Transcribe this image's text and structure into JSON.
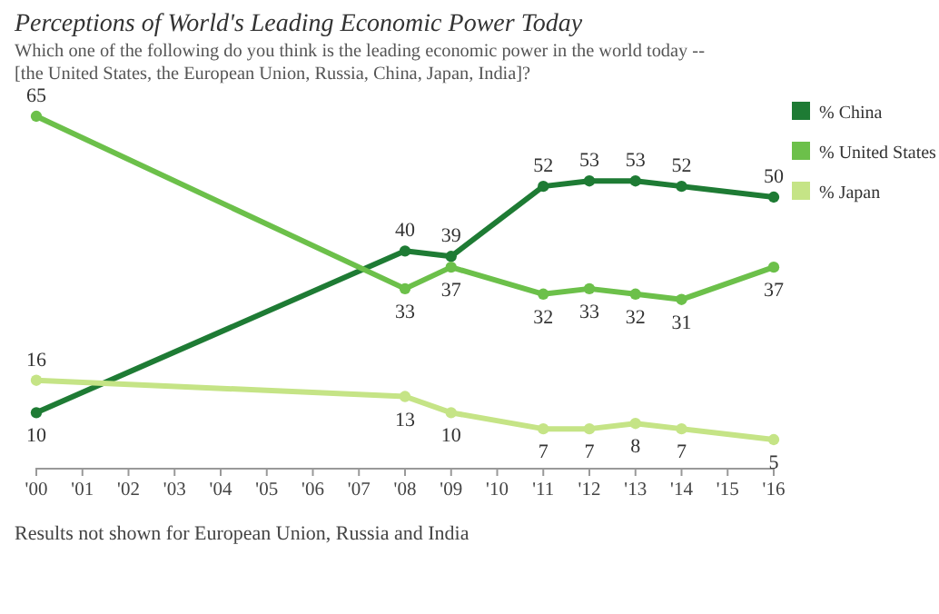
{
  "chart_data": {
    "type": "line",
    "title": "Perceptions of World's Leading Economic Power Today",
    "subtitle": "Which one of the following do you think is the leading economic power in the world today -- [the United States, the European Union, Russia, China, Japan, India]?",
    "annotations": [
      "Results not shown for European Union, Russia and India"
    ],
    "xlim": [
      2000,
      2016
    ],
    "xticks": [
      {
        "value": 2000,
        "label": "'00"
      },
      {
        "value": 2001,
        "label": "'01"
      },
      {
        "value": 2002,
        "label": "'02"
      },
      {
        "value": 2003,
        "label": "'03"
      },
      {
        "value": 2004,
        "label": "'04"
      },
      {
        "value": 2005,
        "label": "'05"
      },
      {
        "value": 2006,
        "label": "'06"
      },
      {
        "value": 2007,
        "label": "'07"
      },
      {
        "value": 2008,
        "label": "'08"
      },
      {
        "value": 2009,
        "label": "'09"
      },
      {
        "value": 2010,
        "label": "'10"
      },
      {
        "value": 2011,
        "label": "'11"
      },
      {
        "value": 2012,
        "label": "'12"
      },
      {
        "value": 2013,
        "label": "'13"
      },
      {
        "value": 2014,
        "label": "'14"
      },
      {
        "value": 2015,
        "label": "'15"
      },
      {
        "value": 2016,
        "label": "'16"
      }
    ],
    "tick_labels": "x",
    "data_labels": true,
    "legend": "right",
    "marker": "circle",
    "line_style": "solid",
    "x": [
      2000,
      2008,
      2009,
      2011,
      2012,
      2013,
      2014,
      2016
    ],
    "series": [
      {
        "name": "% China",
        "color": "#1e7b34",
        "values": [
          10,
          40,
          39,
          52,
          53,
          53,
          52,
          50
        ]
      },
      {
        "name": "% United States",
        "color": "#6cc04a",
        "values": [
          65,
          33,
          37,
          32,
          33,
          32,
          31,
          37
        ]
      },
      {
        "name": "% Japan",
        "color": "#c5e486",
        "values": [
          16,
          13,
          10,
          7,
          7,
          8,
          7,
          5
        ]
      }
    ]
  }
}
